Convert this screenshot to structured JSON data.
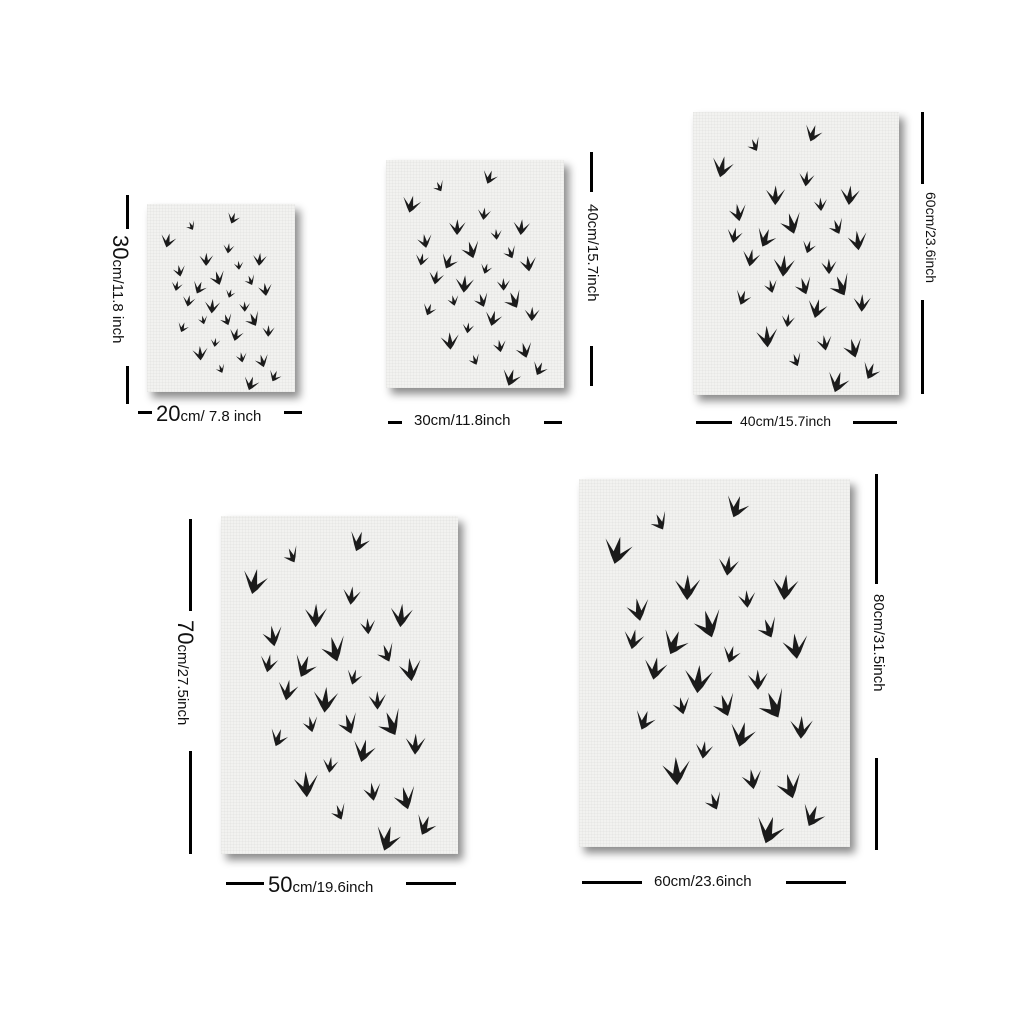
{
  "sizes": [
    {
      "width_num": "20",
      "width_rest": "cm/ 7.8 inch",
      "height_num": "30",
      "height_rest": "cm/11.8 inch"
    },
    {
      "width_label": "30cm/11.8inch",
      "height_label": "40cm/15.7inch"
    },
    {
      "width_label": "40cm/15.7inch",
      "height_label": "60cm/23.6inch"
    },
    {
      "width_num": "50",
      "width_rest": "cm/19.6inch",
      "height_num": "70",
      "height_rest": "cm/27.5inch"
    },
    {
      "width_label": "60cm/23.6inch",
      "height_label": "80cm/31.5inch"
    }
  ],
  "colors": {
    "line": "#000000",
    "canvas": "#f2f2f0",
    "bird": "#1b1b1b"
  },
  "artwork": "flock-of-birds"
}
